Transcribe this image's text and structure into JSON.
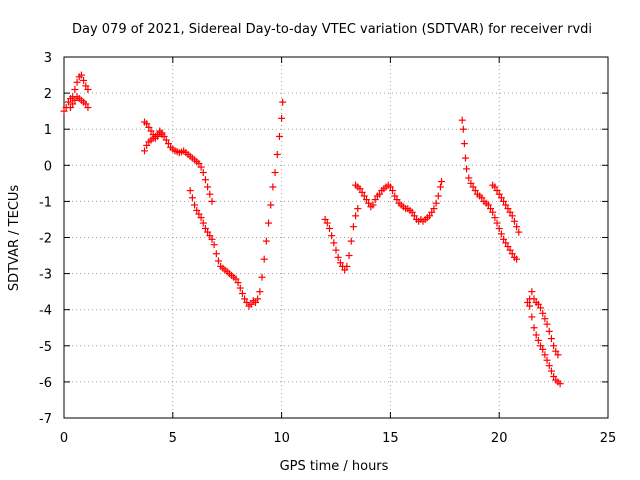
{
  "chart_data": {
    "type": "scatter",
    "title": "Day 079 of 2021, Sidereal Day-to-day VTEC variation (SDTVAR) for receiver rvdi",
    "xlabel": "GPS time / hours",
    "ylabel": "SDTVAR / TECUs",
    "xlim": [
      0,
      25
    ],
    "ylim": [
      -7,
      3
    ],
    "xticks": [
      0,
      5,
      10,
      15,
      20,
      25
    ],
    "yticks": [
      -7,
      -6,
      -5,
      -4,
      -3,
      -2,
      -1,
      0,
      1,
      2,
      3
    ],
    "grid": true,
    "marker": "+",
    "marker_color": "#ff0000",
    "series": [
      {
        "values": [
          [
            0.0,
            1.5
          ],
          [
            0.1,
            1.6
          ],
          [
            0.2,
            1.75
          ],
          [
            0.3,
            1.85
          ],
          [
            0.4,
            1.7
          ],
          [
            0.5,
            1.8
          ],
          [
            0.6,
            1.9
          ],
          [
            0.7,
            1.85
          ],
          [
            0.8,
            1.8
          ],
          [
            0.9,
            1.75
          ],
          [
            1.0,
            1.7
          ],
          [
            1.1,
            1.6
          ],
          [
            0.3,
            1.6
          ],
          [
            0.4,
            1.9
          ],
          [
            0.5,
            2.1
          ],
          [
            0.6,
            2.3
          ],
          [
            0.7,
            2.45
          ],
          [
            0.8,
            2.5
          ],
          [
            0.9,
            2.35
          ],
          [
            1.0,
            2.2
          ],
          [
            1.1,
            2.1
          ],
          [
            3.7,
            0.4
          ],
          [
            3.8,
            0.55
          ],
          [
            3.9,
            0.65
          ],
          [
            4.0,
            0.7
          ],
          [
            4.1,
            0.75
          ],
          [
            4.2,
            0.8
          ],
          [
            4.3,
            0.85
          ],
          [
            4.4,
            0.9
          ],
          [
            4.5,
            0.85
          ],
          [
            3.7,
            1.2
          ],
          [
            3.8,
            1.15
          ],
          [
            3.9,
            1.05
          ],
          [
            4.0,
            0.95
          ],
          [
            4.1,
            0.85
          ],
          [
            4.2,
            0.75
          ],
          [
            4.3,
            0.8
          ],
          [
            4.4,
            0.95
          ],
          [
            4.5,
            0.9
          ],
          [
            4.6,
            0.8
          ],
          [
            4.7,
            0.7
          ],
          [
            4.8,
            0.6
          ],
          [
            4.9,
            0.5
          ],
          [
            5.0,
            0.45
          ],
          [
            5.1,
            0.4
          ],
          [
            5.2,
            0.38
          ],
          [
            5.3,
            0.35
          ],
          [
            5.4,
            0.37
          ],
          [
            5.5,
            0.4
          ],
          [
            5.6,
            0.35
          ],
          [
            5.7,
            0.3
          ],
          [
            5.8,
            0.25
          ],
          [
            5.9,
            0.2
          ],
          [
            6.0,
            0.15
          ],
          [
            6.1,
            0.1
          ],
          [
            6.2,
            0.05
          ],
          [
            6.3,
            -0.05
          ],
          [
            6.4,
            -0.2
          ],
          [
            6.5,
            -0.4
          ],
          [
            6.6,
            -0.6
          ],
          [
            6.7,
            -0.8
          ],
          [
            6.8,
            -1.0
          ],
          [
            5.8,
            -0.7
          ],
          [
            5.9,
            -0.9
          ],
          [
            6.0,
            -1.1
          ],
          [
            6.1,
            -1.25
          ],
          [
            6.2,
            -1.35
          ],
          [
            6.3,
            -1.45
          ],
          [
            6.4,
            -1.6
          ],
          [
            6.5,
            -1.75
          ],
          [
            6.6,
            -1.85
          ],
          [
            6.7,
            -1.95
          ],
          [
            6.8,
            -2.05
          ],
          [
            6.9,
            -2.2
          ],
          [
            7.0,
            -2.45
          ],
          [
            7.1,
            -2.65
          ],
          [
            7.2,
            -2.8
          ],
          [
            7.3,
            -2.85
          ],
          [
            7.4,
            -2.9
          ],
          [
            7.5,
            -2.95
          ],
          [
            7.6,
            -3.0
          ],
          [
            7.7,
            -3.05
          ],
          [
            7.8,
            -3.1
          ],
          [
            7.9,
            -3.15
          ],
          [
            8.0,
            -3.25
          ],
          [
            8.1,
            -3.4
          ],
          [
            8.2,
            -3.55
          ],
          [
            8.3,
            -3.7
          ],
          [
            8.4,
            -3.8
          ],
          [
            8.5,
            -3.9
          ],
          [
            8.6,
            -3.85
          ],
          [
            8.7,
            -3.75
          ],
          [
            8.8,
            -3.8
          ],
          [
            8.9,
            -3.7
          ],
          [
            9.0,
            -3.5
          ],
          [
            9.1,
            -3.1
          ],
          [
            9.2,
            -2.6
          ],
          [
            9.3,
            -2.1
          ],
          [
            9.4,
            -1.6
          ],
          [
            9.5,
            -1.1
          ],
          [
            9.6,
            -0.6
          ],
          [
            9.7,
            -0.2
          ],
          [
            9.8,
            0.3
          ],
          [
            9.9,
            0.8
          ],
          [
            10.0,
            1.3
          ],
          [
            10.05,
            1.75
          ],
          [
            12.0,
            -1.5
          ],
          [
            12.1,
            -1.6
          ],
          [
            12.2,
            -1.75
          ],
          [
            12.3,
            -1.95
          ],
          [
            12.4,
            -2.15
          ],
          [
            12.5,
            -2.35
          ],
          [
            12.6,
            -2.55
          ],
          [
            12.7,
            -2.7
          ],
          [
            12.8,
            -2.8
          ],
          [
            12.9,
            -2.9
          ],
          [
            13.0,
            -2.8
          ],
          [
            13.1,
            -2.5
          ],
          [
            13.2,
            -2.1
          ],
          [
            13.3,
            -1.7
          ],
          [
            13.4,
            -1.4
          ],
          [
            13.5,
            -1.2
          ],
          [
            13.4,
            -0.55
          ],
          [
            13.5,
            -0.6
          ],
          [
            13.6,
            -0.65
          ],
          [
            13.7,
            -0.75
          ],
          [
            13.8,
            -0.85
          ],
          [
            13.9,
            -0.95
          ],
          [
            14.0,
            -1.05
          ],
          [
            14.1,
            -1.15
          ],
          [
            14.2,
            -1.1
          ],
          [
            14.3,
            -0.95
          ],
          [
            14.4,
            -0.85
          ],
          [
            14.5,
            -0.8
          ],
          [
            14.6,
            -0.7
          ],
          [
            14.7,
            -0.65
          ],
          [
            14.8,
            -0.6
          ],
          [
            14.9,
            -0.55
          ],
          [
            15.0,
            -0.6
          ],
          [
            15.1,
            -0.7
          ],
          [
            15.2,
            -0.85
          ],
          [
            15.3,
            -0.95
          ],
          [
            15.4,
            -1.05
          ],
          [
            15.5,
            -1.1
          ],
          [
            15.6,
            -1.15
          ],
          [
            15.7,
            -1.2
          ],
          [
            15.8,
            -1.2
          ],
          [
            15.9,
            -1.25
          ],
          [
            16.0,
            -1.3
          ],
          [
            16.1,
            -1.4
          ],
          [
            16.2,
            -1.5
          ],
          [
            16.3,
            -1.55
          ],
          [
            16.4,
            -1.5
          ],
          [
            16.5,
            -1.55
          ],
          [
            16.6,
            -1.5
          ],
          [
            16.7,
            -1.45
          ],
          [
            16.8,
            -1.4
          ],
          [
            16.9,
            -1.3
          ],
          [
            17.0,
            -1.2
          ],
          [
            17.1,
            -1.05
          ],
          [
            17.2,
            -0.85
          ],
          [
            17.3,
            -0.6
          ],
          [
            17.35,
            -0.45
          ],
          [
            18.3,
            1.25
          ],
          [
            18.35,
            1.0
          ],
          [
            18.4,
            0.6
          ],
          [
            18.45,
            0.2
          ],
          [
            18.5,
            -0.1
          ],
          [
            18.6,
            -0.35
          ],
          [
            18.7,
            -0.5
          ],
          [
            18.8,
            -0.6
          ],
          [
            18.9,
            -0.7
          ],
          [
            19.0,
            -0.8
          ],
          [
            19.1,
            -0.85
          ],
          [
            19.2,
            -0.9
          ],
          [
            19.3,
            -1.0
          ],
          [
            19.4,
            -1.05
          ],
          [
            19.5,
            -1.1
          ],
          [
            19.6,
            -1.2
          ],
          [
            19.7,
            -1.3
          ],
          [
            19.8,
            -1.45
          ],
          [
            19.9,
            -1.6
          ],
          [
            20.0,
            -1.75
          ],
          [
            20.1,
            -1.9
          ],
          [
            20.2,
            -2.05
          ],
          [
            20.3,
            -2.15
          ],
          [
            20.4,
            -2.25
          ],
          [
            20.5,
            -2.35
          ],
          [
            20.6,
            -2.45
          ],
          [
            20.7,
            -2.55
          ],
          [
            20.8,
            -2.6
          ],
          [
            19.7,
            -0.55
          ],
          [
            19.8,
            -0.6
          ],
          [
            19.9,
            -0.7
          ],
          [
            20.0,
            -0.8
          ],
          [
            20.1,
            -0.9
          ],
          [
            20.2,
            -1.0
          ],
          [
            20.3,
            -1.1
          ],
          [
            20.4,
            -1.2
          ],
          [
            20.5,
            -1.3
          ],
          [
            20.6,
            -1.4
          ],
          [
            20.7,
            -1.55
          ],
          [
            20.8,
            -1.7
          ],
          [
            20.9,
            -1.85
          ],
          [
            21.3,
            -3.8
          ],
          [
            21.4,
            -3.7
          ],
          [
            21.5,
            -3.5
          ],
          [
            21.6,
            -3.7
          ],
          [
            21.7,
            -3.8
          ],
          [
            21.8,
            -3.85
          ],
          [
            21.9,
            -3.95
          ],
          [
            22.0,
            -4.1
          ],
          [
            22.1,
            -4.25
          ],
          [
            22.2,
            -4.4
          ],
          [
            22.3,
            -4.6
          ],
          [
            22.4,
            -4.8
          ],
          [
            22.5,
            -5.0
          ],
          [
            22.6,
            -5.15
          ],
          [
            22.7,
            -5.25
          ],
          [
            21.4,
            -3.9
          ],
          [
            21.5,
            -4.2
          ],
          [
            21.6,
            -4.5
          ],
          [
            21.7,
            -4.7
          ],
          [
            21.8,
            -4.85
          ],
          [
            21.9,
            -5.0
          ],
          [
            22.0,
            -5.1
          ],
          [
            22.1,
            -5.25
          ],
          [
            22.2,
            -5.4
          ],
          [
            22.3,
            -5.55
          ],
          [
            22.4,
            -5.7
          ],
          [
            22.5,
            -5.85
          ],
          [
            22.6,
            -5.95
          ],
          [
            22.7,
            -6.0
          ],
          [
            22.8,
            -6.05
          ]
        ]
      }
    ]
  }
}
